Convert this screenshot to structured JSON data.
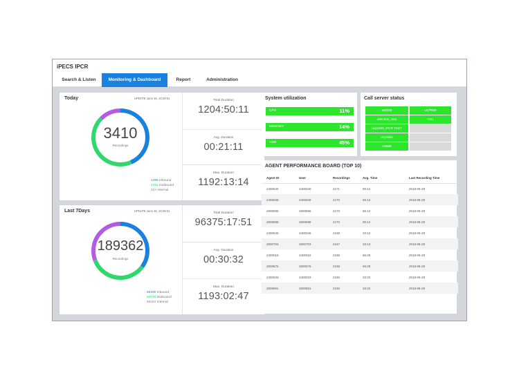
{
  "app": {
    "title": "iPECS IPCR"
  },
  "nav": {
    "tabs": [
      {
        "label": "Search & Listen",
        "active": false
      },
      {
        "label": "Monitoring & Dashboard",
        "active": true
      },
      {
        "label": "Report",
        "active": false
      },
      {
        "label": "Administration",
        "active": false
      }
    ]
  },
  "colors": {
    "accent": "#1a82de",
    "inbound": "#1a82de",
    "outbound": "#2ed86c",
    "internal": "#b25ce6",
    "util_green": "#2ee52e"
  },
  "today": {
    "title": "Today",
    "update": "UPDATE June 26, 10:29:01",
    "total": "3410",
    "caption": "Recordings",
    "legend": [
      {
        "value": "1485",
        "label": "Inbound"
      },
      {
        "value": "1491",
        "label": "Outbound"
      },
      {
        "value": "434",
        "label": "Internal"
      }
    ],
    "stats": [
      {
        "label": "Total Duration",
        "value": "1204:50:11"
      },
      {
        "label": "Avg. Duration",
        "value": "00:21:11"
      },
      {
        "label": "Max. Duration",
        "value": "1192:13:14"
      }
    ]
  },
  "last7": {
    "title": "Last 7Days",
    "update": "UPDATE June 26, 10:29:01",
    "total": "189362",
    "caption": "Recordings",
    "legend": [
      {
        "value": "66330",
        "label": "Inbound"
      },
      {
        "value": "64748",
        "label": "Outbound"
      },
      {
        "value": "58284",
        "label": "Internal"
      }
    ],
    "stats": [
      {
        "label": "Total Duration",
        "value": "96375:17:51"
      },
      {
        "label": "Avg. Duration",
        "value": "00:30:32"
      },
      {
        "label": "Max. Duration",
        "value": "1193:02:47"
      }
    ]
  },
  "system": {
    "title": "System utilization",
    "items": [
      {
        "label": "CPU",
        "value": "11%"
      },
      {
        "label": "MEMORY",
        "value": "14%"
      },
      {
        "label": "HDD",
        "value": "45%"
      }
    ]
  },
  "servers": {
    "title": "Call server status",
    "cells": [
      {
        "label": "eMG80",
        "status": "ok"
      },
      {
        "label": "UCP600",
        "status": "ok"
      },
      {
        "label": "eMG800_Test",
        "status": "ok"
      },
      {
        "label": "CM1",
        "status": "ok"
      },
      {
        "label": "ucp2400_IPCR TEST",
        "status": "ok"
      },
      {
        "label": "",
        "status": "idle"
      },
      {
        "label": "ucp2600",
        "status": "ok"
      },
      {
        "label": "",
        "status": "idle"
      },
      {
        "label": "C0888",
        "status": "ok"
      },
      {
        "label": "",
        "status": "idle"
      }
    ]
  },
  "board": {
    "title": "AGENT PERFORMANCE BOARD (TOP 10)",
    "columns": [
      "Agent ID",
      "User",
      "Recordings",
      "Avg. Time",
      "Last Recording Time"
    ],
    "rows": [
      [
        "2400040",
        "2400040",
        "2171",
        "00:12",
        "2018-06-28"
      ],
      [
        "2400028",
        "2400028",
        "2170",
        "66:12",
        "2018-06-28"
      ],
      [
        "2600696",
        "2600696",
        "2170",
        "66:12",
        "2018-06-28"
      ],
      [
        "2600698",
        "2600698",
        "2170",
        "00:12",
        "2018-06-28"
      ],
      [
        "2400046",
        "2400046",
        "2168",
        "33:12",
        "2018-06-28"
      ],
      [
        "2600703",
        "2600703",
        "2167",
        "33:13",
        "2018-06-28"
      ],
      [
        "2400018",
        "2400018",
        "2158",
        "66:29",
        "2018-06-28"
      ],
      [
        "2600676",
        "2600676",
        "2158",
        "66:29",
        "2018-06-28"
      ],
      [
        "2400033",
        "2400033",
        "2150",
        "33:32",
        "2018-06-28"
      ],
      [
        "2600691",
        "2600691",
        "2150",
        "33:32",
        "2018-06-28"
      ]
    ]
  }
}
